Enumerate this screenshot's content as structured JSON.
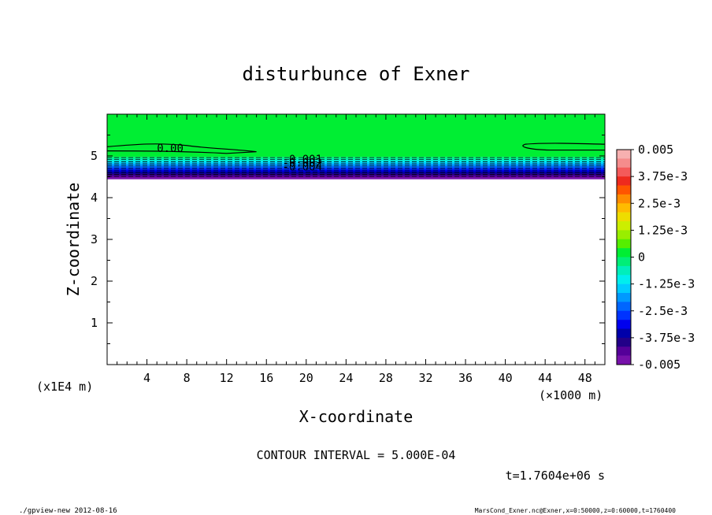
{
  "chart_data": {
    "type": "heatmap",
    "title": "disturbunce of Exner",
    "xlabel": "X-coordinate",
    "ylabel": "Z-coordinate",
    "x_unit_note": "(×1000 m)",
    "y_unit_note": "(x1E4 m)",
    "xlim": [
      0,
      50
    ],
    "ylim": [
      0,
      6
    ],
    "x_ticks": [
      4,
      8,
      12,
      16,
      20,
      24,
      28,
      32,
      36,
      40,
      44,
      48
    ],
    "y_ticks": [
      1,
      2,
      3,
      4,
      5
    ],
    "colorbar": {
      "range": [
        -0.005,
        0.005
      ],
      "tick_labels": [
        "0.005",
        "3.75e-3",
        "2.5e-3",
        "1.25e-3",
        "0",
        "-1.25e-3",
        "-2.5e-3",
        "-3.75e-3",
        "-0.005"
      ],
      "tick_values": [
        0.005,
        0.00375,
        0.0025,
        0.00125,
        0,
        -0.00125,
        -0.0025,
        -0.00375,
        -0.005
      ],
      "colors": [
        "#f7b0b0",
        "#f58c8c",
        "#f45a5a",
        "#ee2a1e",
        "#ff5500",
        "#ff8c00",
        "#ffbb00",
        "#eedd00",
        "#ccee00",
        "#99ee00",
        "#55ee00",
        "#00ee33",
        "#00ee77",
        "#00eebb",
        "#00eeee",
        "#00ccff",
        "#0099ff",
        "#0066ff",
        "#0033ff",
        "#0000ee",
        "#0000aa",
        "#220088",
        "#550099",
        "#7711aa"
      ]
    },
    "field_description": "zero disturbance above ~4.5 (x1E4 m); strong negative stratified band 4.5–5.0; no data below",
    "contour_labels": [
      "0.00",
      "-0.001",
      "-0.002",
      "-0.004"
    ],
    "contour_interval": "CONTOUR INTERVAL = 5.000E-04",
    "time_label": "t=1.7604e+06 s"
  },
  "footer": {
    "left": "./gpview-new   2012-08-16",
    "right": "MarsCond_Exner.nc@Exner,x=0:50000,z=0:60000,t=1760400"
  }
}
